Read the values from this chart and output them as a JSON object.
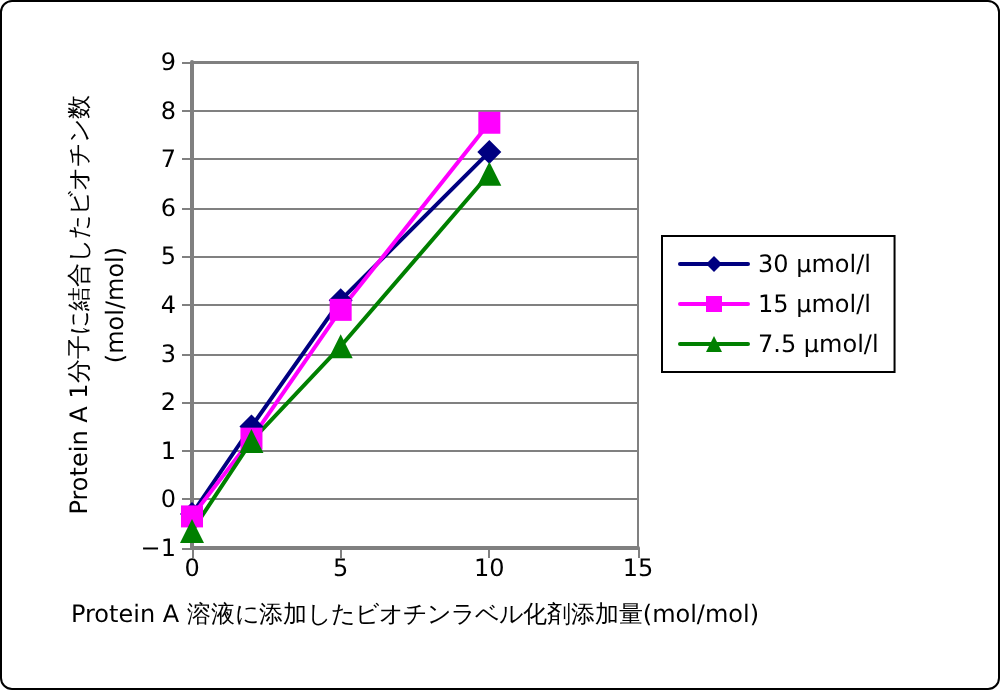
{
  "chart_data": {
    "type": "line",
    "xlabel": "Protein A 溶液に添加したビオチンラベル化剤添加量(mol/mol)",
    "ylabel": "Protein A 1分子に結合したビオチン数\n(mol/mol)",
    "x": [
      0,
      2,
      5,
      10
    ],
    "series": [
      {
        "name": "30 μmol/l",
        "color": "#000080",
        "marker": "diamond",
        "values": [
          -0.3,
          1.5,
          4.1,
          7.15
        ]
      },
      {
        "name": "15 μmol/l",
        "color": "#ff00ff",
        "marker": "square",
        "values": [
          -0.35,
          1.25,
          3.9,
          7.75
        ]
      },
      {
        "name": "7.5 μmol/l",
        "color": "#008000",
        "marker": "triangle",
        "values": [
          -0.65,
          1.2,
          3.15,
          6.7
        ]
      }
    ],
    "xlim": [
      0,
      15
    ],
    "xticks": [
      0,
      5,
      10,
      15
    ],
    "ylim": [
      -1,
      9
    ],
    "yticks": [
      -1,
      0,
      1,
      2,
      3,
      4,
      5,
      6,
      7,
      8,
      9
    ],
    "grid": "y",
    "legend": "right",
    "line_style": "solid"
  }
}
